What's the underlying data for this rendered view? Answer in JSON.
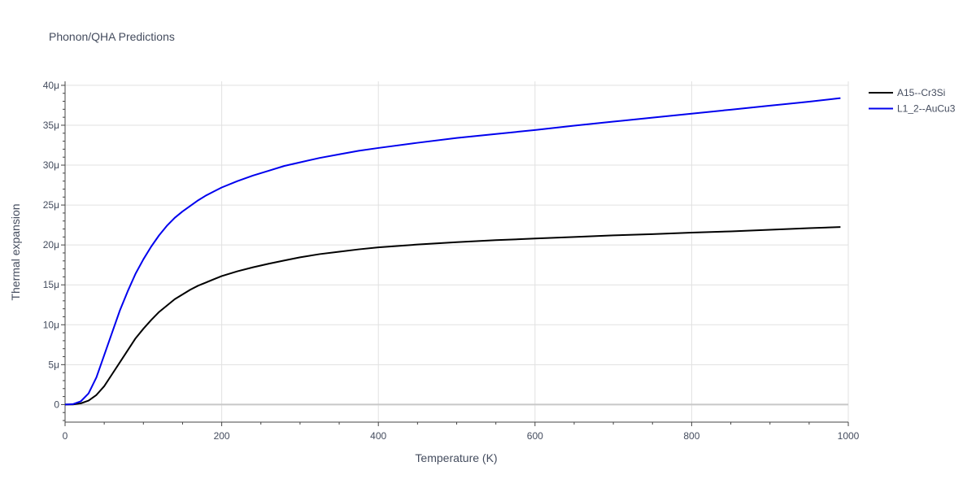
{
  "chart_data": {
    "type": "line",
    "title": "Phonon/QHA Predictions",
    "xlabel": "Temperature (K)",
    "ylabel": "Thermal expansion",
    "xlim": [
      0,
      1000
    ],
    "ylim": [
      -2.2e-06,
      4.05e-05
    ],
    "x_ticks": [
      0,
      200,
      400,
      600,
      800,
      1000
    ],
    "x_tick_labels": [
      "0",
      "200",
      "400",
      "600",
      "800",
      "1000"
    ],
    "y_ticks": [
      0,
      5e-06,
      1e-05,
      1.5e-05,
      2e-05,
      2.5e-05,
      3e-05,
      3.5e-05,
      4e-05
    ],
    "y_tick_labels": [
      "0",
      "5μ",
      "10μ",
      "15μ",
      "20μ",
      "25μ",
      "30μ",
      "35μ",
      "40μ"
    ],
    "grid": true,
    "legend_position": "top-right",
    "series": [
      {
        "name": "A15--Cr3Si",
        "color": "#000000",
        "x": [
          0,
          10,
          20,
          30,
          40,
          50,
          60,
          70,
          80,
          90,
          100,
          110,
          120,
          130,
          140,
          150,
          160,
          170,
          180,
          190,
          200,
          220,
          240,
          260,
          280,
          300,
          325,
          350,
          375,
          400,
          450,
          500,
          550,
          600,
          650,
          700,
          750,
          800,
          850,
          900,
          950,
          990
        ],
        "y": [
          0,
          2e-08,
          1.5e-07,
          5e-07,
          1.2e-06,
          2.3e-06,
          3.8e-06,
          5.3e-06,
          6.8e-06,
          8.3e-06,
          9.5e-06,
          1.06e-05,
          1.16e-05,
          1.24e-05,
          1.32e-05,
          1.38e-05,
          1.44e-05,
          1.49e-05,
          1.53e-05,
          1.57e-05,
          1.61e-05,
          1.67e-05,
          1.72e-05,
          1.765e-05,
          1.805e-05,
          1.845e-05,
          1.885e-05,
          1.915e-05,
          1.945e-05,
          1.97e-05,
          2.005e-05,
          2.035e-05,
          2.06e-05,
          2.08e-05,
          2.1e-05,
          2.12e-05,
          2.135e-05,
          2.155e-05,
          2.17e-05,
          2.19e-05,
          2.21e-05,
          2.225e-05
        ]
      },
      {
        "name": "L1_2--AuCu3",
        "color": "#0000ee",
        "x": [
          0,
          10,
          20,
          30,
          40,
          50,
          60,
          70,
          80,
          90,
          100,
          110,
          120,
          130,
          140,
          150,
          160,
          170,
          180,
          190,
          200,
          220,
          240,
          260,
          280,
          300,
          325,
          350,
          375,
          400,
          450,
          500,
          550,
          600,
          650,
          700,
          750,
          800,
          850,
          900,
          950,
          990
        ],
        "y": [
          0,
          5e-08,
          4e-07,
          1.4e-06,
          3.4e-06,
          6.2e-06,
          9e-06,
          1.18e-05,
          1.42e-05,
          1.64e-05,
          1.82e-05,
          1.98e-05,
          2.12e-05,
          2.24e-05,
          2.34e-05,
          2.42e-05,
          2.49e-05,
          2.56e-05,
          2.62e-05,
          2.67e-05,
          2.72e-05,
          2.8e-05,
          2.87e-05,
          2.93e-05,
          2.99e-05,
          3.035e-05,
          3.09e-05,
          3.135e-05,
          3.18e-05,
          3.215e-05,
          3.28e-05,
          3.34e-05,
          3.39e-05,
          3.44e-05,
          3.495e-05,
          3.545e-05,
          3.595e-05,
          3.645e-05,
          3.695e-05,
          3.745e-05,
          3.795e-05,
          3.84e-05
        ]
      }
    ]
  }
}
